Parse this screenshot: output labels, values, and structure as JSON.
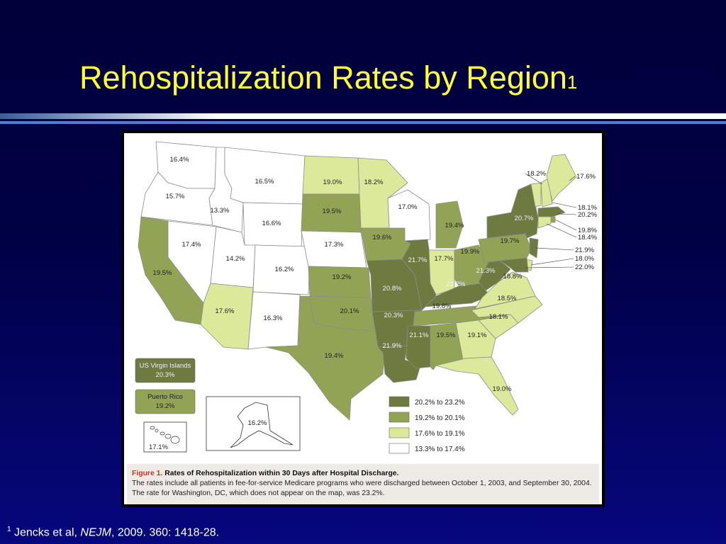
{
  "slide": {
    "title": "Rehospitalization Rates by Region",
    "title_sup": "1"
  },
  "footnote": {
    "sup": "1",
    "authors": " Jencks et al, ",
    "journal": "NEJM",
    "rest": ", 2009. 360: 1418-28."
  },
  "figure": {
    "label": "Figure 1.",
    "title": " Rates of Rehospitalization within 30 Days after Hospital Discharge.",
    "line2": "The rates include all patients in fee-for-service Medicare programs who were discharged between October 1, 2003, and September 30, 2004.",
    "line3": "The rate for Washington, DC, which does not appear on the map, was 23.2%."
  },
  "colors": {
    "band1": "#6e7a40",
    "band2": "#93a355",
    "band3": "#dde99a",
    "band4": "#ffffff",
    "border": "#8c8c8c"
  },
  "legend": [
    {
      "label": "20.2% to 23.2%",
      "band": "band1"
    },
    {
      "label": "19.2% to 20.1%",
      "band": "band2"
    },
    {
      "label": "17.6% to 19.1%",
      "band": "band3"
    },
    {
      "label": "13.3% to 17.4%",
      "band": "band4"
    }
  ],
  "territories": [
    {
      "name": "US Virgin Islands",
      "value": "20.3%",
      "band": "band1"
    },
    {
      "name": "Puerto Rico",
      "value": "19.2%",
      "band": "band2"
    }
  ],
  "insets": {
    "hawaii": "17.1%",
    "alaska": "16.2%"
  },
  "states": [
    {
      "id": "WA",
      "value": "16.4%",
      "band": "band4"
    },
    {
      "id": "OR",
      "value": "15.7%",
      "band": "band4"
    },
    {
      "id": "CA",
      "value": "19.5%",
      "band": "band2"
    },
    {
      "id": "NV",
      "value": "17.4%",
      "band": "band4"
    },
    {
      "id": "ID",
      "value": "13.3%",
      "band": "band4"
    },
    {
      "id": "MT",
      "value": "16.5%",
      "band": "band4"
    },
    {
      "id": "WY",
      "value": "16.6%",
      "band": "band4"
    },
    {
      "id": "UT",
      "value": "14.2%",
      "band": "band4"
    },
    {
      "id": "AZ",
      "value": "17.6%",
      "band": "band3"
    },
    {
      "id": "CO",
      "value": "16.2%",
      "band": "band4"
    },
    {
      "id": "NM",
      "value": "16.3%",
      "band": "band4"
    },
    {
      "id": "ND",
      "value": "19.0%",
      "band": "band3"
    },
    {
      "id": "SD",
      "value": "19.5%",
      "band": "band2"
    },
    {
      "id": "NE",
      "value": "17.3%",
      "band": "band4"
    },
    {
      "id": "KS",
      "value": "19.2%",
      "band": "band2"
    },
    {
      "id": "OK",
      "value": "20.1%",
      "band": "band2"
    },
    {
      "id": "TX",
      "value": "19.4%",
      "band": "band2"
    },
    {
      "id": "MN",
      "value": "18.2%",
      "band": "band3"
    },
    {
      "id": "IA",
      "value": "19.6%",
      "band": "band2"
    },
    {
      "id": "MO",
      "value": "20.8%",
      "band": "band1"
    },
    {
      "id": "AR",
      "value": "20.3%",
      "band": "band1"
    },
    {
      "id": "LA",
      "value": "21.9%",
      "band": "band1"
    },
    {
      "id": "WI",
      "value": "17.0%",
      "band": "band4"
    },
    {
      "id": "IL",
      "value": "21.7%",
      "band": "band1"
    },
    {
      "id": "MI",
      "value": "19.4%",
      "band": "band2"
    },
    {
      "id": "IN",
      "value": "17.7%",
      "band": "band3"
    },
    {
      "id": "OH",
      "value": "19.9%",
      "band": "band2"
    },
    {
      "id": "KY",
      "value": "21.2%",
      "band": "band1"
    },
    {
      "id": "TN",
      "value": "19.8%",
      "band": "band2"
    },
    {
      "id": "MS",
      "value": "21.1%",
      "band": "band1"
    },
    {
      "id": "AL",
      "value": "19.5%",
      "band": "band2"
    },
    {
      "id": "GA",
      "value": "19.1%",
      "band": "band3"
    },
    {
      "id": "FL",
      "value": "19.0%",
      "band": "band3"
    },
    {
      "id": "SC",
      "value": "18.1%",
      "band": "band3"
    },
    {
      "id": "NC",
      "value": "18.5%",
      "band": "band3"
    },
    {
      "id": "VA",
      "value": "18.8%",
      "band": "band3"
    },
    {
      "id": "WV",
      "value": "21.3%",
      "band": "band1"
    },
    {
      "id": "PA",
      "value": "19.7%",
      "band": "band2"
    },
    {
      "id": "NY",
      "value": "20.7%",
      "band": "band1"
    },
    {
      "id": "VT",
      "value": "18.2%",
      "band": "band3"
    },
    {
      "id": "ME",
      "value": "17.6%",
      "band": "band3"
    },
    {
      "id": "NH",
      "value": "18.1%",
      "band": "band3"
    },
    {
      "id": "MA",
      "value": "20.2%",
      "band": "band1"
    },
    {
      "id": "RI",
      "value": "19.8%",
      "band": "band2"
    },
    {
      "id": "CT",
      "value": "18.4%",
      "band": "band3"
    },
    {
      "id": "NJ",
      "value": "21.9%",
      "band": "band1"
    },
    {
      "id": "DE",
      "value": "18.0%",
      "band": "band3"
    },
    {
      "id": "MD",
      "value": "22.0%",
      "band": "band1"
    }
  ]
}
